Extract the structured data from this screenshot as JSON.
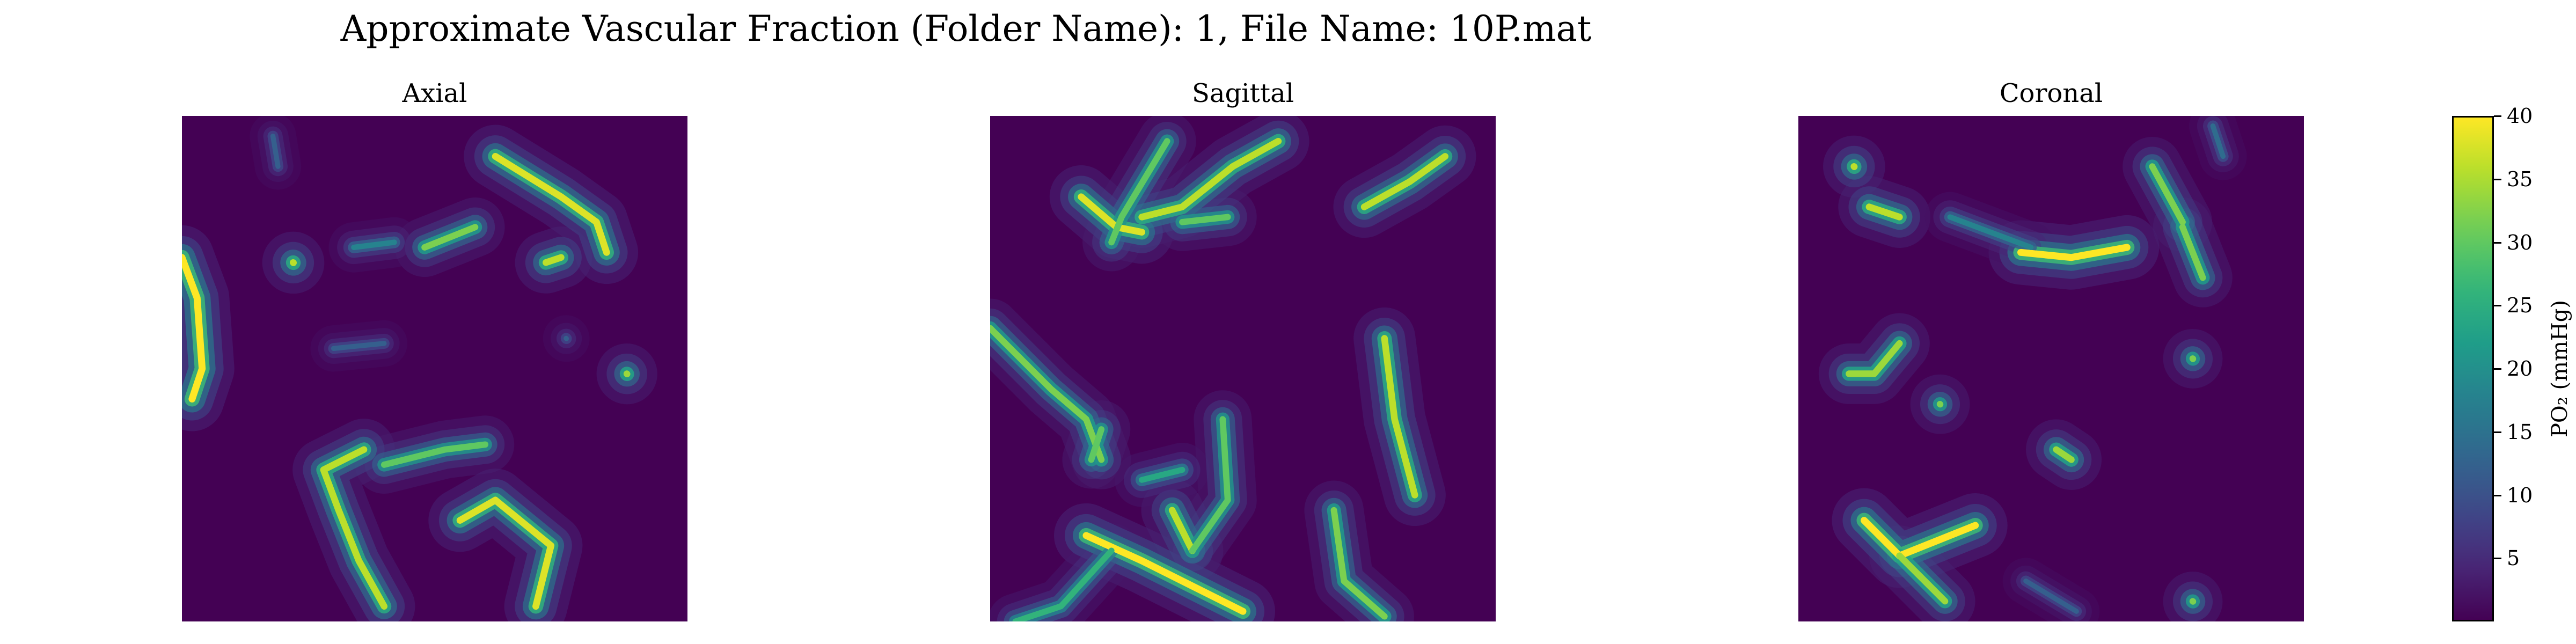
{
  "title": "Approximate Vascular Fraction (Folder Name): 1, File Name: 10P.mat",
  "colorbar": {
    "label": "PO₂ (mmHg)",
    "colormap": "viridis",
    "range": [
      0,
      40
    ],
    "ticks": [
      "5",
      "10",
      "15",
      "20",
      "25",
      "30",
      "35",
      "40"
    ]
  },
  "chart_data": [
    {
      "type": "heatmap",
      "title": "Axial",
      "grid": false,
      "value_range": [
        0,
        40
      ],
      "vessels": [
        {
          "points": [
            [
              0.0,
              0.28
            ],
            [
              0.03,
              0.36
            ],
            [
              0.04,
              0.5
            ],
            [
              0.02,
              0.56
            ]
          ],
          "peak": 40
        },
        {
          "points": [
            [
              0.22,
              0.29
            ]
          ],
          "peak": 36
        },
        {
          "points": [
            [
              0.48,
              0.26
            ],
            [
              0.58,
              0.22
            ]
          ],
          "peak": 32
        },
        {
          "points": [
            [
              0.34,
              0.26
            ],
            [
              0.42,
              0.25
            ]
          ],
          "peak": 18
        },
        {
          "points": [
            [
              0.62,
              0.08
            ],
            [
              0.75,
              0.16
            ],
            [
              0.82,
              0.21
            ],
            [
              0.84,
              0.27
            ]
          ],
          "peak": 38
        },
        {
          "points": [
            [
              0.75,
              0.28
            ],
            [
              0.72,
              0.29
            ]
          ],
          "peak": 36
        },
        {
          "points": [
            [
              0.18,
              0.04
            ],
            [
              0.19,
              0.1
            ]
          ],
          "peak": 12
        },
        {
          "points": [
            [
              0.3,
              0.46
            ],
            [
              0.4,
              0.45
            ]
          ],
          "peak": 12
        },
        {
          "points": [
            [
              0.76,
              0.44
            ]
          ],
          "peak": 12
        },
        {
          "points": [
            [
              0.88,
              0.51
            ]
          ],
          "peak": 34
        },
        {
          "points": [
            [
              0.36,
              0.66
            ],
            [
              0.28,
              0.7
            ],
            [
              0.31,
              0.78
            ],
            [
              0.35,
              0.88
            ],
            [
              0.4,
              0.97
            ]
          ],
          "peak": 36
        },
        {
          "points": [
            [
              0.4,
              0.69
            ],
            [
              0.52,
              0.66
            ],
            [
              0.6,
              0.65
            ]
          ],
          "peak": 30
        },
        {
          "points": [
            [
              0.55,
              0.8
            ],
            [
              0.62,
              0.76
            ],
            [
              0.73,
              0.85
            ],
            [
              0.7,
              0.97
            ]
          ],
          "peak": 38
        }
      ]
    },
    {
      "type": "heatmap",
      "title": "Sagittal",
      "grid": false,
      "value_range": [
        0,
        40
      ],
      "vessels": [
        {
          "points": [
            [
              0.18,
              0.16
            ],
            [
              0.25,
              0.22
            ],
            [
              0.3,
              0.23
            ]
          ],
          "peak": 38
        },
        {
          "points": [
            [
              0.24,
              0.25
            ],
            [
              0.26,
              0.2
            ],
            [
              0.35,
              0.05
            ]
          ],
          "peak": 30
        },
        {
          "points": [
            [
              0.3,
              0.2
            ],
            [
              0.38,
              0.18
            ],
            [
              0.48,
              0.1
            ],
            [
              0.57,
              0.05
            ]
          ],
          "peak": 36
        },
        {
          "points": [
            [
              0.38,
              0.21
            ],
            [
              0.47,
              0.2
            ]
          ],
          "peak": 30
        },
        {
          "points": [
            [
              0.74,
              0.18
            ],
            [
              0.83,
              0.13
            ],
            [
              0.9,
              0.08
            ]
          ],
          "peak": 36
        },
        {
          "points": [
            [
              0.0,
              0.42
            ],
            [
              0.12,
              0.54
            ],
            [
              0.19,
              0.6
            ],
            [
              0.22,
              0.68
            ]
          ],
          "peak": 32
        },
        {
          "points": [
            [
              0.22,
              0.62
            ],
            [
              0.2,
              0.68
            ]
          ],
          "peak": 30
        },
        {
          "points": [
            [
              0.19,
              0.83
            ],
            [
              0.3,
              0.88
            ],
            [
              0.4,
              0.93
            ],
            [
              0.5,
              0.98
            ]
          ],
          "peak": 40
        },
        {
          "points": [
            [
              0.24,
              0.86
            ],
            [
              0.14,
              0.97
            ],
            [
              0.05,
              1.0
            ]
          ],
          "peak": 26
        },
        {
          "points": [
            [
              0.36,
              0.78
            ],
            [
              0.4,
              0.86
            ]
          ],
          "peak": 36
        },
        {
          "points": [
            [
              0.4,
              0.86
            ],
            [
              0.47,
              0.76
            ],
            [
              0.46,
              0.6
            ]
          ],
          "peak": 30
        },
        {
          "points": [
            [
              0.3,
              0.72
            ],
            [
              0.38,
              0.7
            ]
          ],
          "peak": 24
        },
        {
          "points": [
            [
              0.78,
              0.44
            ],
            [
              0.8,
              0.6
            ],
            [
              0.84,
              0.75
            ]
          ],
          "peak": 36
        },
        {
          "points": [
            [
              0.68,
              0.78
            ],
            [
              0.7,
              0.92
            ],
            [
              0.78,
              0.99
            ]
          ],
          "peak": 32
        }
      ]
    },
    {
      "type": "heatmap",
      "title": "Coronal",
      "grid": false,
      "value_range": [
        0,
        40
      ],
      "vessels": [
        {
          "points": [
            [
              0.11,
              0.1
            ]
          ],
          "peak": 36
        },
        {
          "points": [
            [
              0.14,
              0.18
            ],
            [
              0.2,
              0.2
            ]
          ],
          "peak": 36
        },
        {
          "points": [
            [
              0.44,
              0.27
            ],
            [
              0.54,
              0.28
            ],
            [
              0.65,
              0.26
            ]
          ],
          "peak": 40
        },
        {
          "points": [
            [
              0.3,
              0.2
            ],
            [
              0.46,
              0.26
            ]
          ],
          "peak": 18
        },
        {
          "points": [
            [
              0.7,
              0.1
            ],
            [
              0.76,
              0.21
            ]
          ],
          "peak": 32
        },
        {
          "points": [
            [
              0.76,
              0.22
            ],
            [
              0.8,
              0.32
            ]
          ],
          "peak": 32
        },
        {
          "points": [
            [
              0.82,
              0.02
            ],
            [
              0.84,
              0.08
            ]
          ],
          "peak": 14
        },
        {
          "points": [
            [
              0.2,
              0.45
            ],
            [
              0.15,
              0.51
            ],
            [
              0.1,
              0.51
            ]
          ],
          "peak": 34
        },
        {
          "points": [
            [
              0.28,
              0.57
            ]
          ],
          "peak": 32
        },
        {
          "points": [
            [
              0.78,
              0.48
            ]
          ],
          "peak": 32
        },
        {
          "points": [
            [
              0.51,
              0.66
            ],
            [
              0.54,
              0.68
            ]
          ],
          "peak": 34
        },
        {
          "points": [
            [
              0.13,
              0.8
            ],
            [
              0.2,
              0.87
            ],
            [
              0.35,
              0.81
            ]
          ],
          "peak": 40
        },
        {
          "points": [
            [
              0.2,
              0.87
            ],
            [
              0.29,
              0.96
            ]
          ],
          "peak": 34
        },
        {
          "points": [
            [
              0.78,
              0.96
            ]
          ],
          "peak": 32
        },
        {
          "points": [
            [
              0.45,
              0.92
            ],
            [
              0.55,
              0.98
            ]
          ],
          "peak": 12
        }
      ]
    }
  ]
}
